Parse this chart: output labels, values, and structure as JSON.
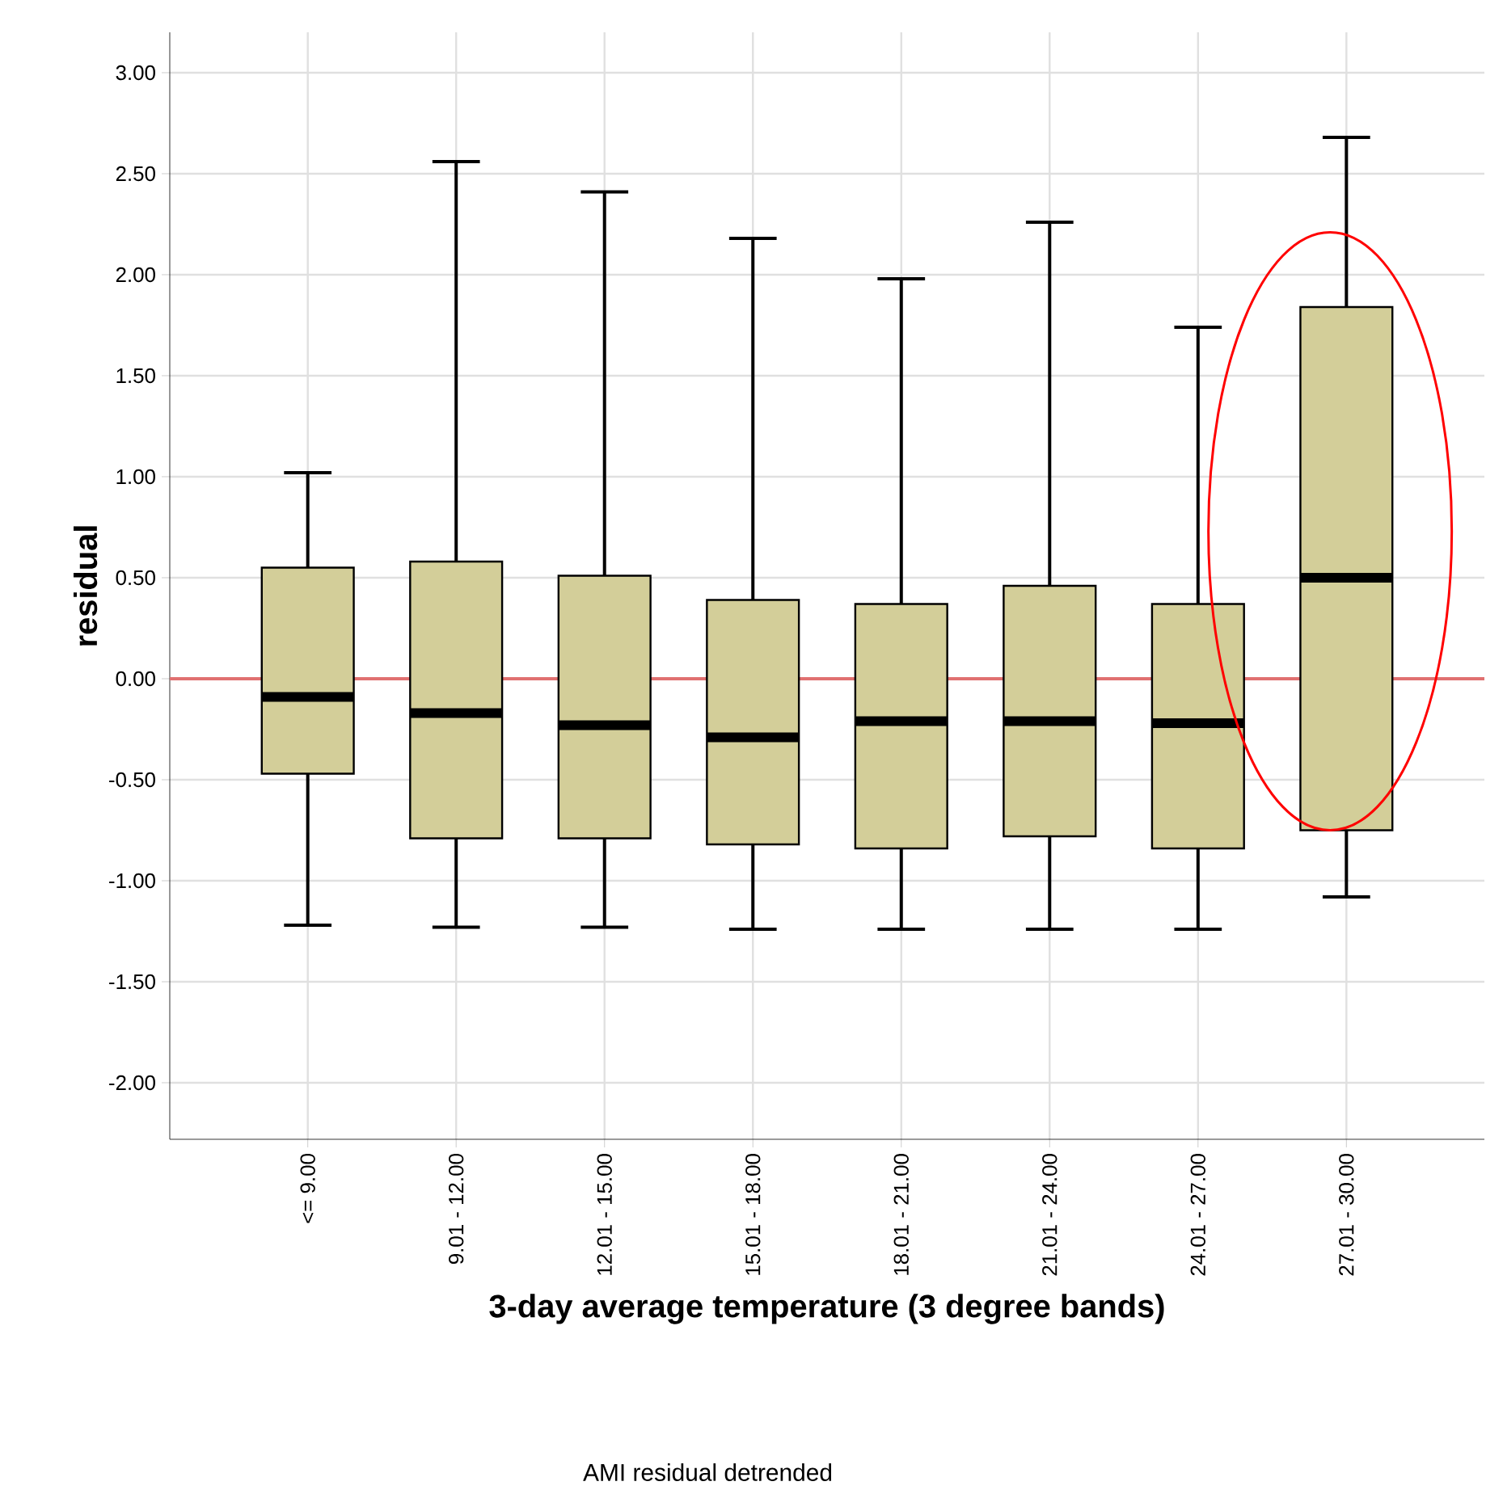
{
  "chart_data": {
    "type": "box",
    "xlabel": "3-day average temperature (3 degree bands)",
    "ylabel": "residual",
    "annotations": [
      "AMI residual detrended"
    ],
    "categories": [
      "<= 9.00",
      "9.01 - 12.00",
      "12.01 - 15.00",
      "15.01 - 18.00",
      "18.01 - 21.00",
      "21.01 - 24.00",
      "24.01 - 27.00",
      "27.01 - 30.00"
    ],
    "color": "#d3ce99",
    "boxes": [
      {
        "low": -1.22,
        "q1": -0.47,
        "median": -0.09,
        "q3": 0.55,
        "high": 1.02
      },
      {
        "low": -1.23,
        "q1": -0.79,
        "median": -0.17,
        "q3": 0.58,
        "high": 2.56
      },
      {
        "low": -1.23,
        "q1": -0.79,
        "median": -0.23,
        "q3": 0.51,
        "high": 2.41
      },
      {
        "low": -1.24,
        "q1": -0.82,
        "median": -0.29,
        "q3": 0.39,
        "high": 2.18
      },
      {
        "low": -1.24,
        "q1": -0.84,
        "median": -0.21,
        "q3": 0.37,
        "high": 1.98
      },
      {
        "low": -1.24,
        "q1": -0.78,
        "median": -0.21,
        "q3": 0.46,
        "high": 2.26
      },
      {
        "low": -1.24,
        "q1": -0.84,
        "median": -0.22,
        "q3": 0.37,
        "high": 1.74
      },
      {
        "low": -1.08,
        "q1": -0.75,
        "median": 0.5,
        "q3": 1.84,
        "high": 2.68
      }
    ],
    "ylim": [
      -2.28,
      3.2
    ],
    "yticks": [
      {
        "value": -2,
        "label": "-2.00"
      },
      {
        "value": -1.5,
        "label": "-1.50"
      },
      {
        "value": -1,
        "label": "-1.00"
      },
      {
        "value": -0.5,
        "label": "-0.50"
      },
      {
        "value": 0,
        "label": "0.00"
      },
      {
        "value": 0.5,
        "label": "0.50"
      },
      {
        "value": 1,
        "label": "1.00"
      },
      {
        "value": 1.5,
        "label": "1.50"
      },
      {
        "value": 2,
        "label": "2.00"
      },
      {
        "value": 2.5,
        "label": "2.50"
      },
      {
        "value": 3,
        "label": "3.00"
      }
    ],
    "ref_lines": [
      {
        "axis": "y",
        "value": 0,
        "color": "#e07070"
      }
    ],
    "grid": true
  }
}
